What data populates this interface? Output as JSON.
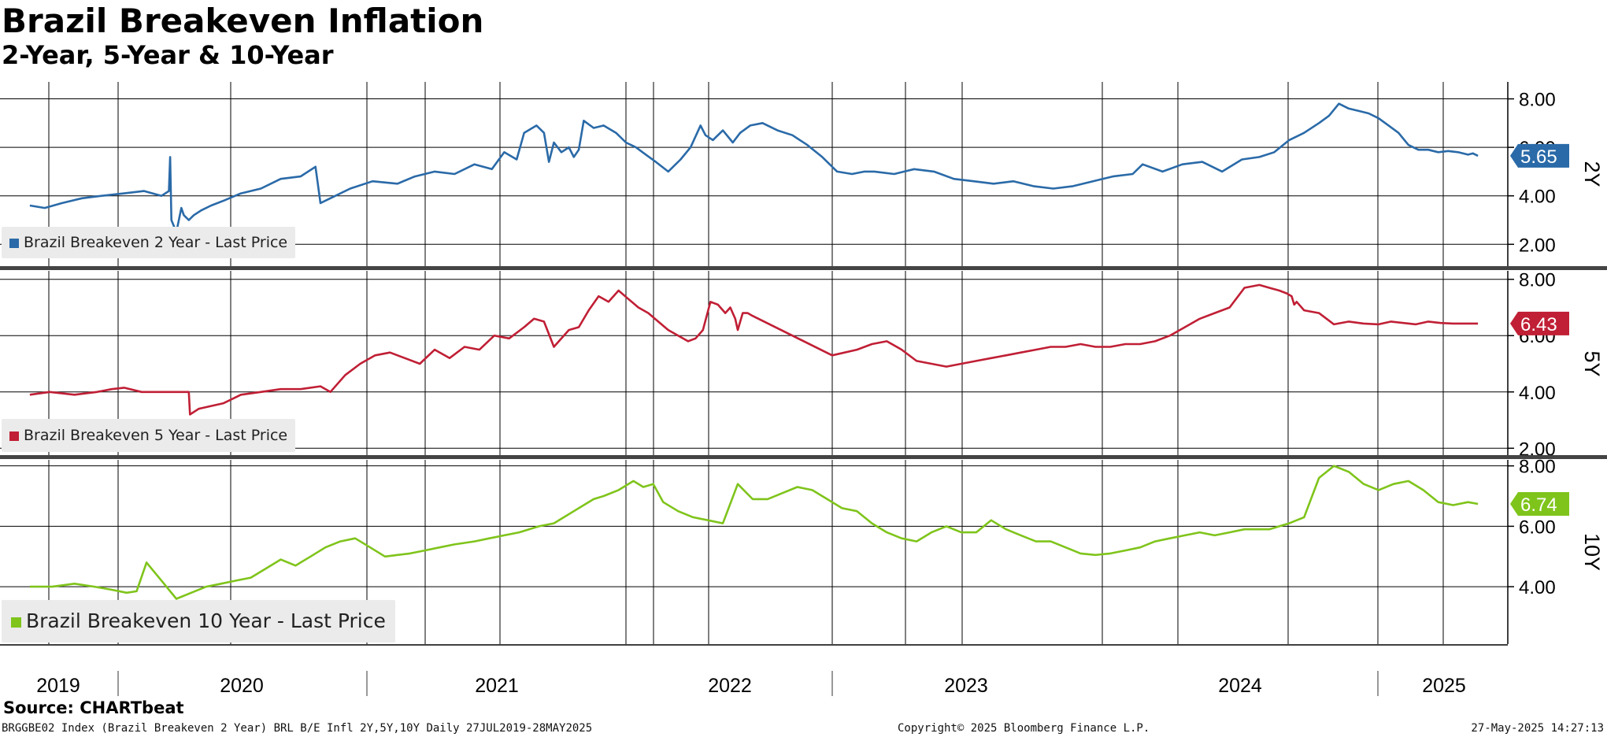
{
  "title": "Brazil Breakeven Inflation",
  "subtitle": "2-Year, 5-Year & 10-Year",
  "source": "Source: CHARTbeat",
  "footer": {
    "left": "BRGGBE02 Index (Brazil Breakeven 2 Year) BRL B/E Infl 2Y,5Y,10Y  Daily 27JUL2019-28MAY2025",
    "center": "Copyright© 2025 Bloomberg Finance L.P.",
    "right": "27-May-2025 14:27:13"
  },
  "chart_data": [
    {
      "type": "line",
      "panel_label": "2Y",
      "legend": "Brazil Breakeven 2 Year - Last Price",
      "color": "#2a6aa8",
      "last_value": "5.65",
      "y_ticks": [
        "8.00",
        "6.00",
        "4.00",
        "2.00"
      ],
      "ylim": [
        1.1,
        8.7
      ],
      "x": [
        2019.57,
        2019.63,
        2019.7,
        2019.78,
        2019.86,
        2019.95,
        2020.03,
        2020.1,
        2020.13,
        2020.135,
        2020.14,
        2020.16,
        2020.18,
        2020.19,
        2020.21,
        2020.23,
        2020.26,
        2020.3,
        2020.35,
        2020.42,
        2020.5,
        2020.58,
        2020.66,
        2020.72,
        2020.74,
        2020.78,
        2020.86,
        2020.95,
        2021.05,
        2021.12,
        2021.2,
        2021.28,
        2021.36,
        2021.43,
        2021.48,
        2021.53,
        2021.56,
        2021.61,
        2021.64,
        2021.66,
        2021.68,
        2021.71,
        2021.74,
        2021.76,
        2021.78,
        2021.8,
        2021.84,
        2021.88,
        2021.93,
        2021.97,
        2022.01,
        2022.05,
        2022.09,
        2022.14,
        2022.19,
        2022.23,
        2022.27,
        2022.29,
        2022.32,
        2022.36,
        2022.4,
        2022.43,
        2022.47,
        2022.52,
        2022.58,
        2022.64,
        2022.7,
        2022.76,
        2022.82,
        2022.88,
        2022.93,
        2022.97,
        2023.05,
        2023.13,
        2023.21,
        2023.29,
        2023.37,
        2023.45,
        2023.53,
        2023.61,
        2023.69,
        2023.77,
        2023.85,
        2023.93,
        2024.01,
        2024.05,
        2024.13,
        2024.21,
        2024.29,
        2024.37,
        2024.45,
        2024.52,
        2024.58,
        2024.64,
        2024.7,
        2024.76,
        2024.8,
        2024.84,
        2024.88,
        2024.92,
        2024.96,
        2025.0,
        2025.04,
        2025.08,
        2025.12,
        2025.16,
        2025.2,
        2025.24,
        2025.28,
        2025.32,
        2025.36,
        2025.38,
        2025.4
      ],
      "values": [
        3.6,
        3.5,
        3.7,
        3.9,
        4.0,
        4.1,
        4.2,
        4.0,
        4.2,
        5.6,
        3.0,
        2.5,
        3.5,
        3.2,
        3.0,
        3.2,
        3.4,
        3.6,
        3.8,
        4.1,
        4.3,
        4.7,
        4.8,
        5.2,
        3.7,
        3.9,
        4.3,
        4.6,
        4.5,
        4.8,
        5.0,
        4.9,
        5.3,
        5.1,
        5.8,
        5.5,
        6.6,
        6.9,
        6.6,
        5.4,
        6.2,
        5.8,
        6.0,
        5.6,
        5.9,
        7.1,
        6.8,
        6.9,
        6.6,
        6.2,
        6.0,
        5.7,
        5.4,
        5.0,
        5.5,
        6.0,
        6.9,
        6.5,
        6.3,
        6.7,
        6.2,
        6.6,
        6.9,
        7.0,
        6.7,
        6.5,
        6.1,
        5.6,
        5.0,
        4.9,
        5.0,
        5.0,
        4.9,
        5.1,
        5.0,
        4.7,
        4.6,
        4.5,
        4.6,
        4.4,
        4.3,
        4.4,
        4.6,
        4.8,
        4.9,
        5.3,
        5.0,
        5.3,
        5.4,
        5.0,
        5.5,
        5.6,
        5.8,
        6.3,
        6.6,
        7.0,
        7.3,
        7.8,
        7.6,
        7.5,
        7.4,
        7.2,
        6.9,
        6.6,
        6.1,
        5.9,
        5.9,
        5.8,
        5.85,
        5.8,
        5.7,
        5.75,
        5.65
      ],
      "x_ticks": [
        "2019",
        "2020",
        "2021",
        "2022",
        "2023",
        "2024",
        "2025"
      ]
    },
    {
      "type": "line",
      "panel_label": "5Y",
      "legend": "Brazil Breakeven 5 Year - Last Price",
      "color": "#c01f35",
      "last_value": "6.43",
      "y_ticks": [
        "8.00",
        "6.00",
        "4.00",
        "2.00"
      ],
      "ylim": [
        1.7,
        8.3
      ],
      "x": [
        2019.57,
        2019.65,
        2019.75,
        2019.84,
        2019.9,
        2019.95,
        2020.02,
        2020.1,
        2020.2,
        2020.21,
        2020.215,
        2020.25,
        2020.3,
        2020.35,
        2020.42,
        2020.5,
        2020.58,
        2020.66,
        2020.74,
        2020.78,
        2020.84,
        2020.9,
        2020.96,
        2021.02,
        2021.08,
        2021.14,
        2021.2,
        2021.26,
        2021.32,
        2021.38,
        2021.44,
        2021.5,
        2021.56,
        2021.6,
        2021.64,
        2021.68,
        2021.74,
        2021.78,
        2021.82,
        2021.86,
        2021.9,
        2021.94,
        2021.98,
        2022.02,
        2022.06,
        2022.1,
        2022.14,
        2022.18,
        2022.22,
        2022.25,
        2022.28,
        2022.31,
        2022.34,
        2022.37,
        2022.39,
        2022.41,
        2022.42,
        2022.44,
        2022.46,
        2022.48,
        2022.8,
        2022.9,
        2022.96,
        2023.02,
        2023.08,
        2023.14,
        2023.2,
        2023.26,
        2023.32,
        2023.38,
        2023.44,
        2023.5,
        2023.56,
        2023.62,
        2023.68,
        2023.74,
        2023.8,
        2023.86,
        2023.92,
        2023.98,
        2024.04,
        2024.1,
        2024.16,
        2024.22,
        2024.28,
        2024.34,
        2024.4,
        2024.46,
        2024.52,
        2024.56,
        2024.6,
        2024.63,
        2024.65,
        2024.66,
        2024.67,
        2024.7,
        2024.76,
        2024.82,
        2024.88,
        2024.94,
        2025.0,
        2025.05,
        2025.1,
        2025.15,
        2025.2,
        2025.25,
        2025.3,
        2025.35,
        2025.38,
        2025.4
      ],
      "values": [
        3.9,
        4.0,
        3.9,
        4.0,
        4.1,
        4.15,
        4.0,
        4.0,
        4.0,
        4.0,
        3.2,
        3.4,
        3.5,
        3.6,
        3.9,
        4.0,
        4.1,
        4.1,
        4.2,
        4.0,
        4.6,
        5.0,
        5.3,
        5.4,
        5.2,
        5.0,
        5.5,
        5.2,
        5.6,
        5.5,
        6.0,
        5.9,
        6.3,
        6.6,
        6.5,
        5.6,
        6.2,
        6.3,
        6.9,
        7.4,
        7.2,
        7.6,
        7.3,
        7.0,
        6.8,
        6.5,
        6.2,
        6.0,
        5.8,
        5.9,
        6.2,
        7.2,
        7.1,
        6.8,
        7.0,
        6.6,
        6.2,
        6.8,
        6.8,
        6.7,
        5.3,
        5.5,
        5.7,
        5.8,
        5.5,
        5.1,
        5.0,
        4.9,
        5.0,
        5.1,
        5.2,
        5.3,
        5.4,
        5.5,
        5.6,
        5.6,
        5.7,
        5.6,
        5.6,
        5.7,
        5.7,
        5.8,
        6.0,
        6.3,
        6.6,
        6.8,
        7.0,
        7.7,
        7.8,
        7.7,
        7.6,
        7.5,
        7.4,
        7.1,
        7.2,
        6.9,
        6.8,
        6.4,
        6.5,
        6.43,
        6.4,
        6.5,
        6.45,
        6.4,
        6.5,
        6.45,
        6.43,
        6.43,
        6.43,
        6.43
      ],
      "x_ticks": []
    },
    {
      "type": "line",
      "panel_label": "10Y",
      "legend": "Brazil Breakeven 10 Year - Last Price",
      "color": "#7fc41b",
      "last_value": "6.74",
      "y_ticks": [
        "8.00",
        "6.00",
        "4.00"
      ],
      "ylim": [
        2.1,
        8.2
      ],
      "x": [
        2019.57,
        2019.66,
        2019.75,
        2019.83,
        2019.9,
        2019.96,
        2020.0,
        2020.04,
        2020.1,
        2020.16,
        2020.22,
        2020.28,
        2020.34,
        2020.4,
        2020.46,
        2020.52,
        2020.58,
        2020.64,
        2020.7,
        2020.76,
        2020.82,
        2020.88,
        2020.94,
        2021.0,
        2021.05,
        2021.1,
        2021.16,
        2021.22,
        2021.28,
        2021.36,
        2021.42,
        2021.48,
        2021.54,
        2021.58,
        2021.62,
        2021.68,
        2021.72,
        2021.76,
        2021.8,
        2021.84,
        2021.88,
        2021.94,
        2022.0,
        2022.04,
        2022.08,
        2022.12,
        2022.18,
        2022.24,
        2022.3,
        2022.36,
        2022.42,
        2022.48,
        2022.54,
        2022.6,
        2022.66,
        2022.72,
        2022.78,
        2022.84,
        2022.9,
        2022.96,
        2023.02,
        2023.08,
        2023.14,
        2023.2,
        2023.26,
        2023.32,
        2023.38,
        2023.44,
        2023.5,
        2023.56,
        2023.62,
        2023.68,
        2023.74,
        2023.8,
        2023.86,
        2023.92,
        2023.98,
        2024.04,
        2024.1,
        2024.16,
        2024.22,
        2024.28,
        2024.34,
        2024.4,
        2024.46,
        2024.52,
        2024.56,
        2024.6,
        2024.64,
        2024.7,
        2024.76,
        2024.82,
        2024.88,
        2024.94,
        2025.0,
        2025.06,
        2025.12,
        2025.18,
        2025.24,
        2025.3,
        2025.36,
        2025.4
      ],
      "values": [
        4.0,
        4.0,
        4.1,
        4.0,
        3.9,
        3.8,
        3.85,
        4.8,
        4.2,
        3.6,
        3.8,
        4.0,
        4.1,
        4.2,
        4.3,
        4.6,
        4.9,
        4.7,
        5.0,
        5.3,
        5.5,
        5.6,
        5.3,
        5.0,
        5.05,
        5.1,
        5.2,
        5.3,
        5.4,
        5.5,
        5.6,
        5.7,
        5.8,
        5.9,
        6.0,
        6.1,
        6.3,
        6.5,
        6.7,
        6.9,
        7.0,
        7.2,
        7.5,
        7.3,
        7.4,
        6.8,
        6.5,
        6.3,
        6.2,
        6.1,
        7.4,
        6.9,
        6.9,
        7.1,
        7.3,
        7.2,
        6.9,
        6.6,
        6.5,
        6.1,
        5.8,
        5.6,
        5.5,
        5.8,
        6.0,
        5.8,
        5.8,
        6.2,
        5.9,
        5.7,
        5.5,
        5.5,
        5.3,
        5.1,
        5.05,
        5.1,
        5.2,
        5.3,
        5.5,
        5.6,
        5.7,
        5.8,
        5.7,
        5.8,
        5.9,
        5.9,
        5.9,
        6.0,
        6.1,
        6.3,
        7.6,
        8.0,
        7.8,
        7.4,
        7.2,
        7.4,
        7.5,
        7.2,
        6.8,
        6.7,
        6.8,
        6.74
      ],
      "x_ticks": []
    }
  ]
}
